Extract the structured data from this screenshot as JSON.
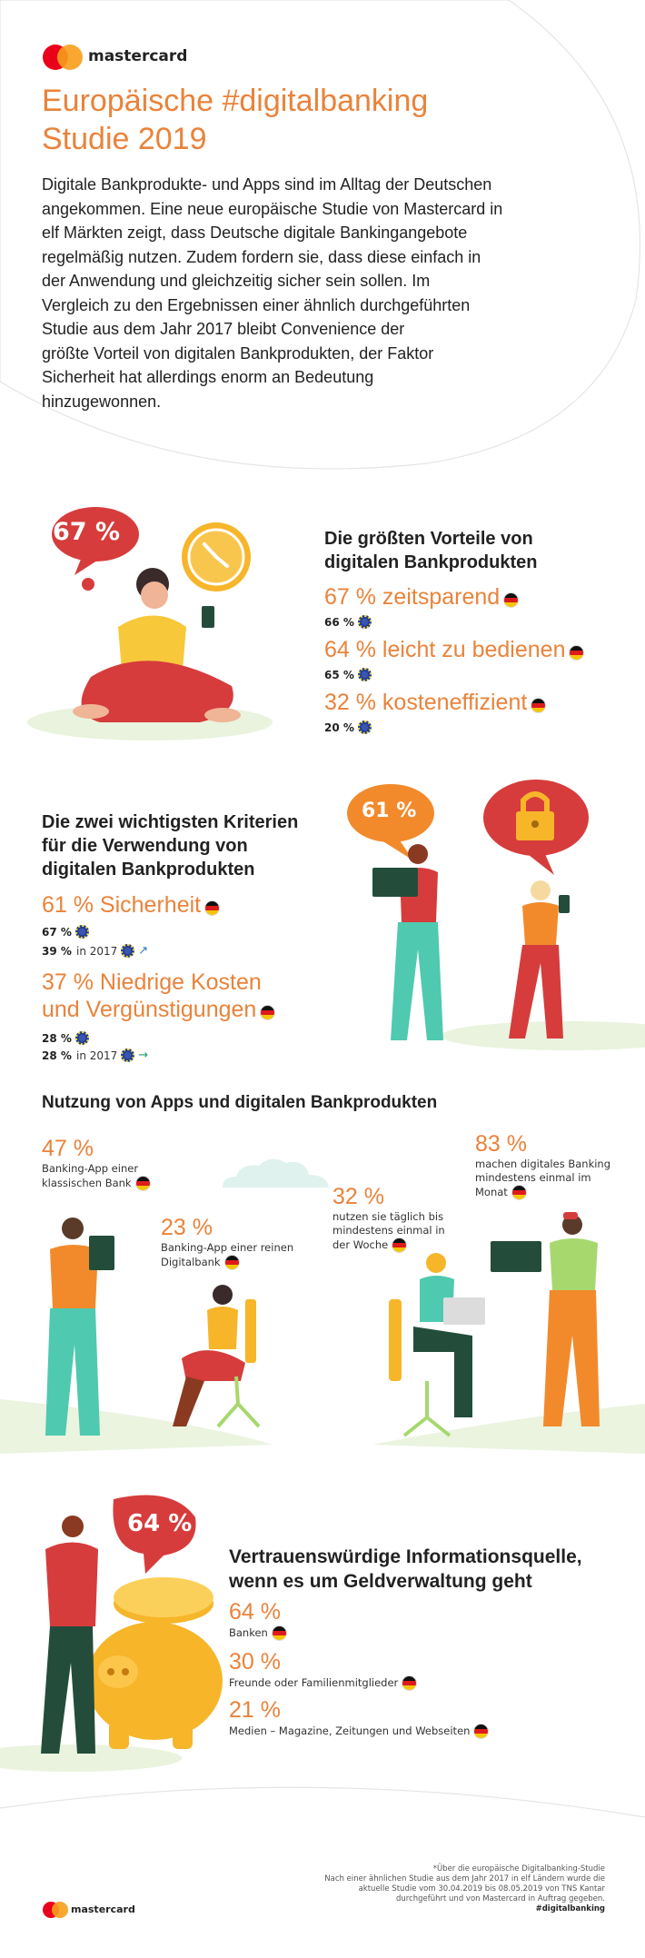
{
  "header": {
    "brand": "mastercard",
    "title_line1": "Europäische #digitalbanking",
    "title_line2": "Studie 2019",
    "intro": [
      "Digitale Bankprodukte- und Apps sind im Alltag der Deutschen",
      "angekommen. Eine neue europäische Studie von Mastercard in",
      "elf Märkten zeigt, dass Deutsche digitale Bankingangebote",
      "regelmäßig nutzen. Zudem fordern sie, dass diese einfach in",
      "der Anwendung und gleichzeitig sicher sein sollen. Im",
      "Vergleich zu den Ergebnissen einer ähnlich durchgeführten",
      "Studie aus dem Jahr 2017 bleibt Convenience der",
      "größte Vorteil von digitalen Bankprodukten, der Faktor",
      "Sicherheit hat allerdings enorm an Bedeutung",
      "hinzugewonnen."
    ]
  },
  "vorteile": {
    "bubble": "67 %",
    "heading_line1": "Die größten Vorteile von",
    "heading_line2": "digitalen Bankprodukten",
    "items": [
      {
        "de": "67 % zeitsparend",
        "eu": "66 %"
      },
      {
        "de": "64 % leicht zu bedienen",
        "eu": "65 %"
      },
      {
        "de": "32 % kosteneffizient",
        "eu": "20 %"
      }
    ]
  },
  "kriterien": {
    "bubble": "61 %",
    "heading_line1": "Die zwei wichtigsten Kriterien",
    "heading_line2": "für die Verwendung von",
    "heading_line3": "digitalen Bankprodukten",
    "item1": {
      "de": "61 % Sicherheit",
      "eu": "67 %",
      "y2017": "39 %",
      "y2017_suffix": "in 2017",
      "arrow": "↗"
    },
    "item2": {
      "de_line1": "37 % Niedrige Kosten",
      "de_line2": "und Vergünstigungen",
      "eu": "28 %",
      "y2017": "28 %",
      "y2017_suffix": "in 2017",
      "arrow": "→"
    }
  },
  "nutzung": {
    "heading": "Nutzung von Apps und digitalen Bankprodukten",
    "s1": {
      "pct": "47 %",
      "line1": "Banking-App einer",
      "line2": "klassischen Bank"
    },
    "s2": {
      "pct": "23 %",
      "line1": "Banking-App einer reinen",
      "line2": "Digitalbank"
    },
    "s3": {
      "pct": "32 %",
      "line1": "nutzen sie täglich bis",
      "line2": "mindestens einmal in",
      "line3": "der Woche"
    },
    "s4": {
      "pct": "83 %",
      "line1": "machen digitales Banking",
      "line2": "mindestens einmal im",
      "line3": "Monat"
    }
  },
  "vertrauen": {
    "bubble": "64 %",
    "heading_line1": "Vertrauenswürdige Informationsquelle,",
    "heading_line2": "wenn es um Geldverwaltung geht",
    "items": [
      {
        "pct": "64 %",
        "label": "Banken"
      },
      {
        "pct": "30 %",
        "label": "Freunde oder Familienmitglieder"
      },
      {
        "pct": "21 %",
        "label": "Medien – Magazine, Zeitungen und Webseiten"
      }
    ]
  },
  "footer": {
    "brand": "mastercard",
    "note": [
      "*Über die europäische Digitalbanking-Studie",
      "Nach einer ähnlichen Studie aus dem Jahr 2017 in elf Ländern wurde die",
      "aktuelle Studie vom 30.04.2019 bis 08.05.2019 von TNS Kantar",
      "durchgeführt und von Mastercard in Auftrag gegeben."
    ],
    "hashtag": "#digitalbanking"
  },
  "colors": {
    "accent": "#e9833b",
    "red": "#d63c3c",
    "yellow": "#f7b52a",
    "teal": "#4fc9b0"
  }
}
